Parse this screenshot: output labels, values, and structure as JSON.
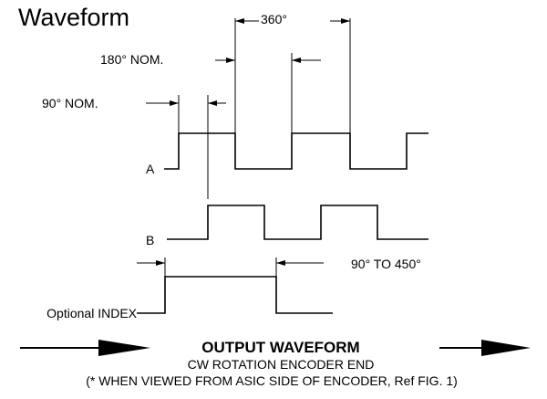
{
  "title": "Waveform",
  "dimensions": {
    "period": "360°",
    "half": "180° NOM.",
    "quarter": "90° NOM.",
    "index_width": "90° TO 450°"
  },
  "channels": {
    "a": "A",
    "b": "B",
    "index": "Optional INDEX"
  },
  "caption": {
    "heading": "OUTPUT WAVEFORM",
    "line1": "CW ROTATION ENCODER END",
    "line2": "(* WHEN VIEWED FROM ASIC SIDE OF ENCODER, Ref FIG. 1)"
  }
}
